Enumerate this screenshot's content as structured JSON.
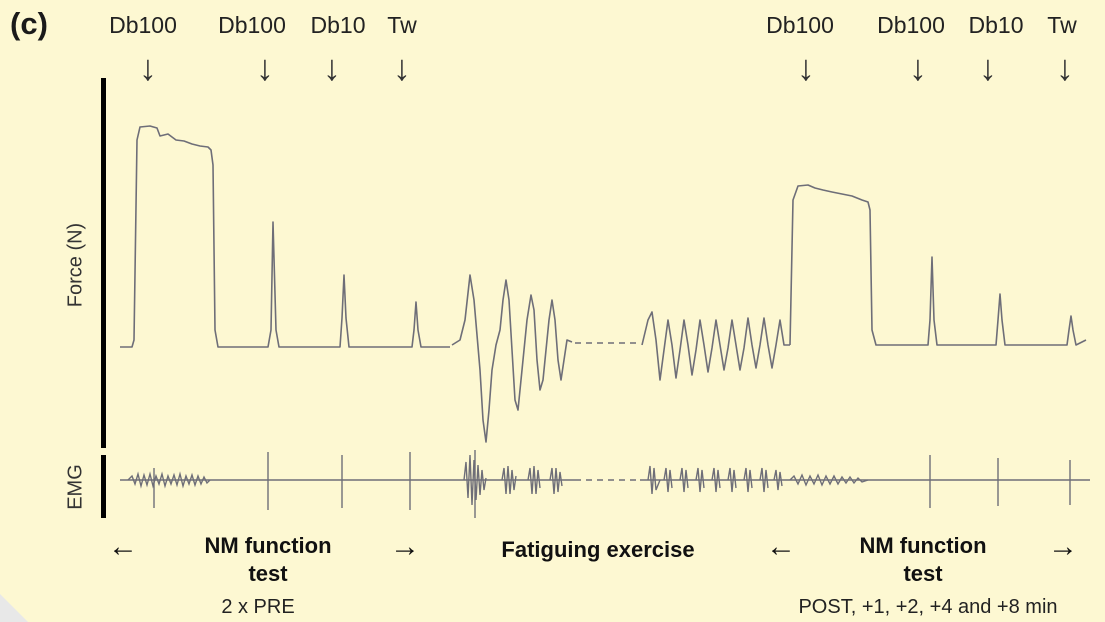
{
  "panel_label": "(c)",
  "stimuli_pre": [
    {
      "label": "Db100",
      "icon": "arrow-down-icon"
    },
    {
      "label": "Db100",
      "icon": "arrow-down-icon"
    },
    {
      "label": "Db10",
      "icon": "arrow-down-icon"
    },
    {
      "label": "Tw",
      "icon": "arrow-down-icon"
    }
  ],
  "stimuli_post": [
    {
      "label": "Db100",
      "icon": "arrow-down-icon"
    },
    {
      "label": "Db100",
      "icon": "arrow-down-icon"
    },
    {
      "label": "Db10",
      "icon": "arrow-down-icon"
    },
    {
      "label": "Tw",
      "icon": "arrow-down-icon"
    }
  ],
  "axes": {
    "force_label": "Force (N)",
    "emg_label": "EMG"
  },
  "phases": {
    "pre": {
      "label_line1": "NM function",
      "label_line2": "test",
      "subtitle": "2 x PRE"
    },
    "exercise": {
      "label": "Fatiguing exercise"
    },
    "post": {
      "label_line1": "NM function",
      "label_line2": "test",
      "subtitle": "POST, +1, +2, +4 and +8 min"
    }
  },
  "colors": {
    "background": "#fdf8d2",
    "trace": "#6e6e78",
    "axis": "#000000"
  }
}
